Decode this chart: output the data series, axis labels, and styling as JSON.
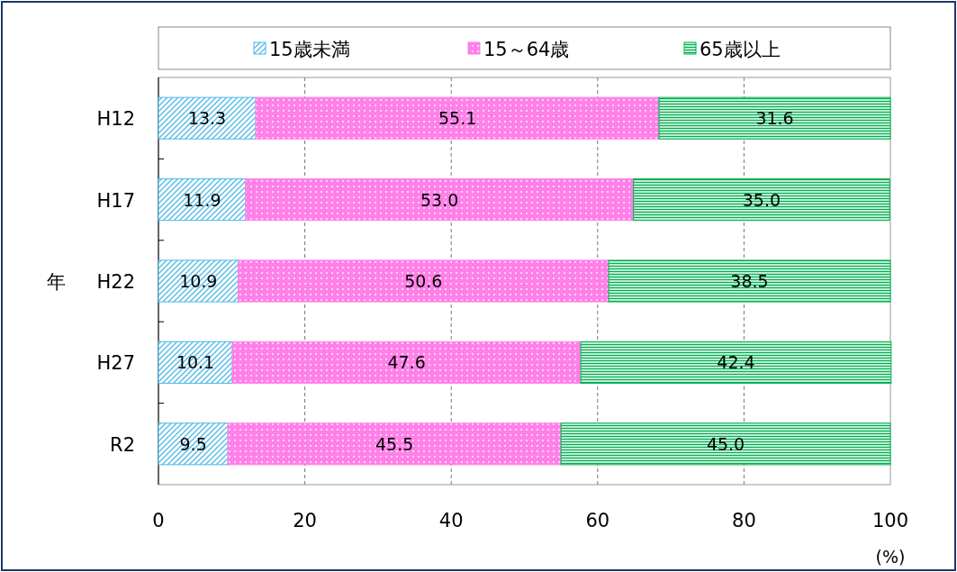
{
  "chart_data": {
    "type": "bar",
    "orientation": "horizontal",
    "stacked": true,
    "categories": [
      "H12",
      "H17",
      "H22",
      "H27",
      "R2"
    ],
    "series": [
      {
        "name": "15歳未満",
        "color": "#4db8e8",
        "values": [
          13.3,
          11.9,
          10.9,
          10.1,
          9.5
        ],
        "value_labels": [
          "13.3",
          "11.9",
          "10.9",
          "10.1",
          "9.5"
        ]
      },
      {
        "name": "15～64歳",
        "color": "#ff80e8",
        "values": [
          55.1,
          53.0,
          50.6,
          47.6,
          45.5
        ],
        "value_labels": [
          "55.1",
          "53.0",
          "50.6",
          "47.6",
          "45.5"
        ]
      },
      {
        "name": "65歳以上",
        "color": "#00b050",
        "values": [
          31.6,
          35.0,
          38.5,
          42.4,
          45.0
        ],
        "value_labels": [
          "31.6",
          "35.0",
          "38.5",
          "42.4",
          "45.0"
        ]
      }
    ],
    "xlim": [
      0,
      100
    ],
    "xticks": [
      0,
      20,
      40,
      60,
      80,
      100
    ],
    "xlabel": "(%)",
    "ylabel": "年",
    "grid": "x",
    "legend": "top"
  }
}
